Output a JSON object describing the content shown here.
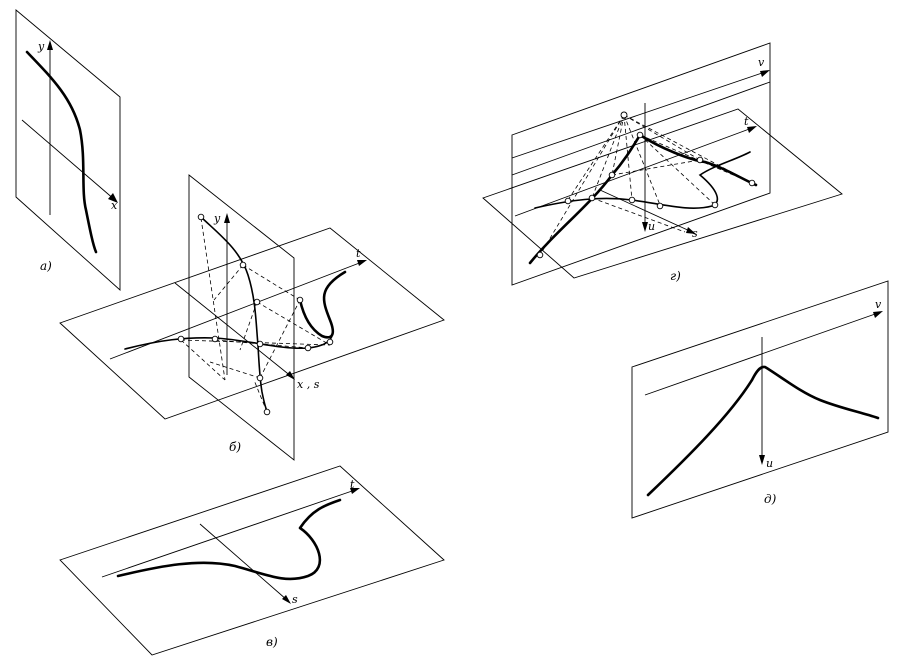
{
  "panel_a": {
    "caption": "а)",
    "axis_y": "y",
    "axis_x": "x"
  },
  "panel_b": {
    "caption": "б)",
    "axis_y": "y",
    "axis_t": "t",
    "axis_xs": "x , s"
  },
  "panel_v": {
    "caption": "в)",
    "axis_t": "t",
    "axis_s": "s"
  },
  "panel_g": {
    "caption": "г)",
    "axis_v": "v",
    "axis_t": "t",
    "axis_u": "u",
    "axis_s": "s"
  },
  "panel_d": {
    "caption": "д)",
    "axis_v": "v",
    "axis_u": "u"
  }
}
